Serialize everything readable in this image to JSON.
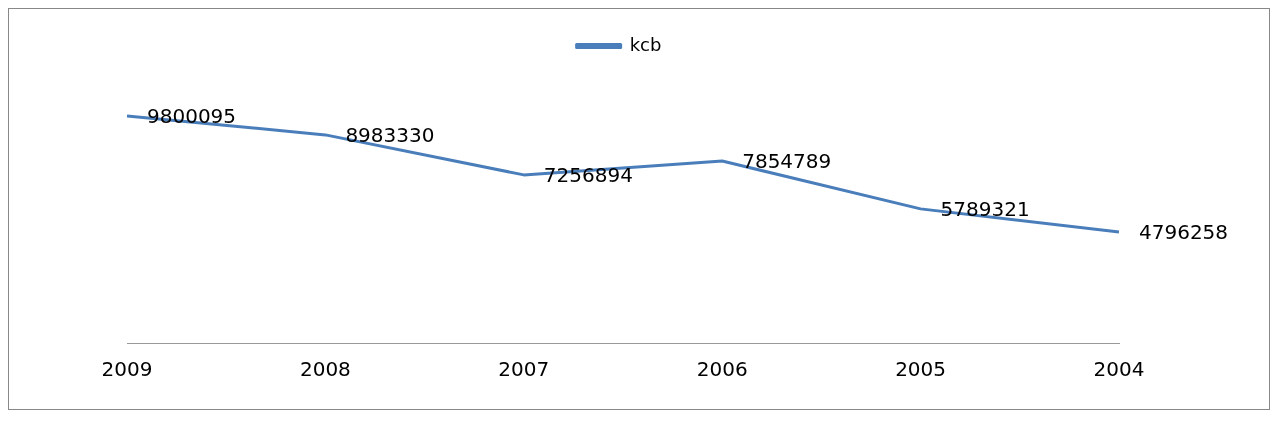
{
  "chart_data": {
    "type": "line",
    "categories": [
      "2009",
      "2008",
      "2007",
      "2006",
      "2005",
      "2004"
    ],
    "series": [
      {
        "name": "kcb",
        "color": "#4a7ebb",
        "values": [
          9800095,
          8983330,
          7256894,
          7854789,
          5789321,
          4796258
        ]
      }
    ],
    "tick_labels": "x",
    "grid": false,
    "legend": "top",
    "marker": "none",
    "line_style": "solid",
    "data_labels": true
  }
}
